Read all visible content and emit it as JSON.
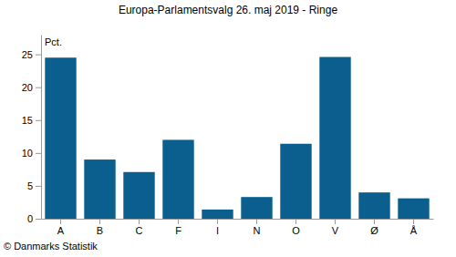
{
  "chart_data": {
    "type": "bar",
    "title": "Europa-Parlamentsvalg 26. maj 2019 - Ringe",
    "ylabel": "Pct.",
    "annotations": [
      "© Danmarks Statistik"
    ],
    "categories": [
      "A",
      "B",
      "C",
      "F",
      "I",
      "N",
      "O",
      "V",
      "Ø",
      "Å"
    ],
    "values": [
      24.5,
      9.0,
      7.1,
      12.0,
      1.4,
      3.3,
      11.4,
      24.6,
      4.0,
      3.1
    ],
    "color": "#0b5f8f",
    "ylim": [
      0,
      28
    ],
    "yticks": [
      0,
      5,
      10,
      15,
      20,
      25
    ],
    "grid": false
  }
}
